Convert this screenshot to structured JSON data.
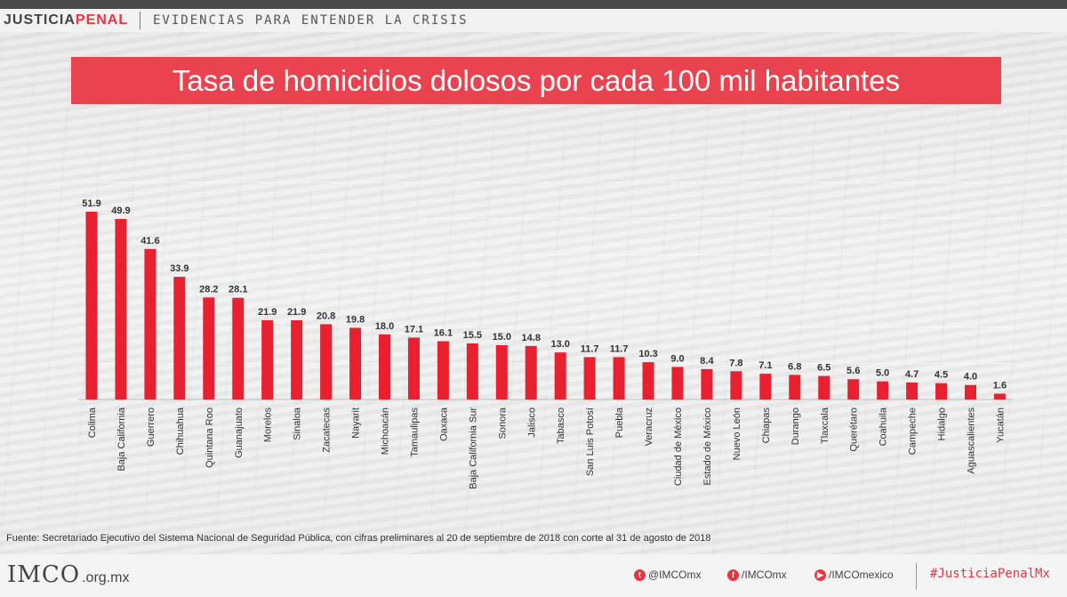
{
  "header": {
    "brand_part1": "JUSTICIA",
    "brand_part2": "PENAL",
    "tagline": "EVIDENCIAS PARA ENTENDER LA CRISIS"
  },
  "colors": {
    "accent": "#e94350",
    "bar": "#e8202f",
    "brand_red": "#e8343f"
  },
  "chart_data": {
    "type": "bar",
    "title": "Tasa de homicidios dolosos por cada 100 mil habitantes",
    "categories": [
      "Colima",
      "Baja California",
      "Guerrero",
      "Chihuahua",
      "Quintana Roo",
      "Guanajuato",
      "Morelos",
      "Sinaloa",
      "Zacatecas",
      "Nayarit",
      "Michoacán",
      "Tamaulipas",
      "Oaxaca",
      "Baja California Sur",
      "Sonora",
      "Jalisco",
      "Tabasco",
      "San Luis Potosí",
      "Puebla",
      "Veracruz",
      "Ciudad de México",
      "Estado de México",
      "Nuevo León",
      "Chiapas",
      "Durango",
      "Tlaxcala",
      "Querétaro",
      "Coahuila",
      "Campeche",
      "Hidalgo",
      "Aguascalientes",
      "Yucatán"
    ],
    "values": [
      51.9,
      49.9,
      41.6,
      33.9,
      28.2,
      28.1,
      21.9,
      21.9,
      20.8,
      19.8,
      18.0,
      17.1,
      16.1,
      15.5,
      15.0,
      14.8,
      13.0,
      11.7,
      11.7,
      10.3,
      9.0,
      8.4,
      7.8,
      7.1,
      6.8,
      6.5,
      5.6,
      5.0,
      4.7,
      4.5,
      4.0,
      1.6
    ],
    "value_labels": [
      "51.9",
      "49.9",
      "41.6",
      "33.9",
      "28.2",
      "28.1",
      "21.9",
      "21.9",
      "20.8",
      "19.8",
      "18.0",
      "17.1",
      "16.1",
      "15.5",
      "15.0",
      "14.8",
      "13.0",
      "11.7",
      "11.7",
      "10.3",
      "9.0",
      "8.4",
      "7.8",
      "7.1",
      "6.8",
      "6.5",
      "5.6",
      "5.0",
      "4.7",
      "4.5",
      "4.0",
      "1.6"
    ],
    "ylim": [
      0,
      60
    ],
    "grid": true,
    "legend": "none"
  },
  "source": "Fuente: Secretariado Ejecutivo del Sistema Nacional de Seguridad Pública,  con cifras preliminares  al 20 de septiembre de 2018 con corte al 31 de agosto de 2018",
  "footer": {
    "logo_text": "IMCO",
    "logo_domain": ".org.mx",
    "twitter": "@IMCOmx",
    "facebook": "/IMCOmx",
    "youtube": "/IMCOmexico",
    "hashtag": "#JusticiaPenalMx",
    "twitter_icon": "twitter-icon",
    "facebook_icon": "facebook-icon",
    "youtube_icon": "youtube-icon"
  }
}
